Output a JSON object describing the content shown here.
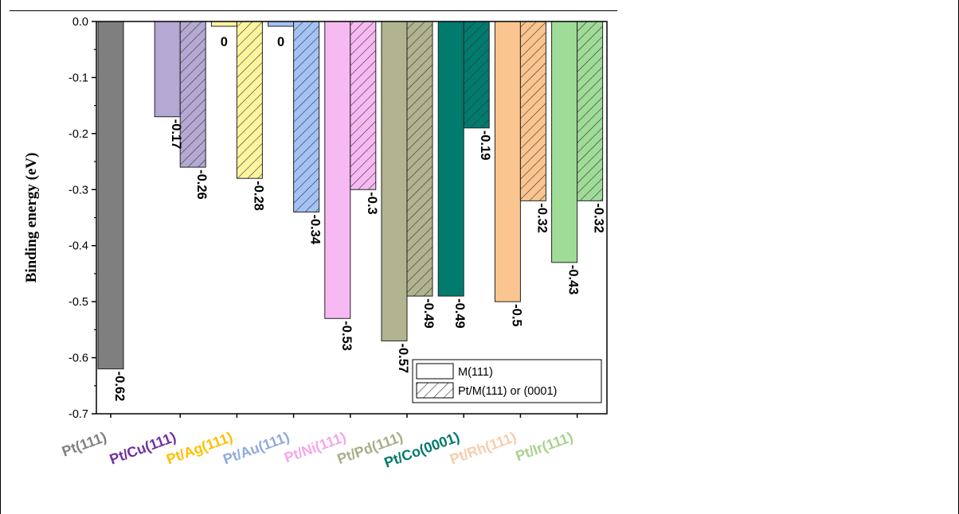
{
  "chart_data": {
    "type": "bar",
    "ylabel": "Binding energy (eV)",
    "xlabel": "",
    "ylim": [
      -0.7,
      0.0
    ],
    "yticks": [
      0.0,
      -0.1,
      -0.2,
      -0.3,
      -0.4,
      -0.5,
      -0.6,
      -0.7
    ],
    "ytick_labels": [
      "0.0",
      "-0.1",
      "-0.2",
      "-0.3",
      "-0.4",
      "-0.5",
      "-0.6",
      "-0.7"
    ],
    "grid": false,
    "legend_position": "bottom-right",
    "groups": [
      {
        "label": "Pt(111)",
        "color": "#7f7f7f",
        "label_color": "#808080",
        "bars": [
          {
            "series": "M(111)",
            "value": -0.62,
            "text": "-0.62"
          }
        ]
      },
      {
        "label": "Pt/Cu(111)",
        "color": "#b5a8d2",
        "label_color": "#7030a0",
        "bars": [
          {
            "series": "M(111)",
            "value": -0.17,
            "text": "-0.17"
          },
          {
            "series": "Pt/M(111) or (0001)",
            "value": -0.26,
            "text": "-0.26"
          }
        ]
      },
      {
        "label": "Pt/Ag(111)",
        "color": "#fff59d",
        "label_color": "#ffc000",
        "bars": [
          {
            "series": "M(111)",
            "value": 0.0,
            "text": "0"
          },
          {
            "series": "Pt/M(111) or (0001)",
            "value": -0.28,
            "text": "-0.28"
          }
        ]
      },
      {
        "label": "Pt/Au(111)",
        "color": "#a4c2f4",
        "label_color": "#8faadc",
        "bars": [
          {
            "series": "M(111)",
            "value": 0.0,
            "text": "0"
          },
          {
            "series": "Pt/M(111) or (0001)",
            "value": -0.34,
            "text": "-0.34"
          }
        ]
      },
      {
        "label": "Pt/Ni(111)",
        "color": "#f7b9f1",
        "label_color": "#f4a6ec",
        "bars": [
          {
            "series": "M(111)",
            "value": -0.53,
            "text": "-0.53"
          },
          {
            "series": "Pt/M(111) or (0001)",
            "value": -0.3,
            "text": "-0.3"
          }
        ]
      },
      {
        "label": "Pt/Pd(111)",
        "color": "#b1b48e",
        "label_color": "#a9ad86",
        "bars": [
          {
            "series": "M(111)",
            "value": -0.57,
            "text": "-0.57"
          },
          {
            "series": "Pt/M(111) or (0001)",
            "value": -0.49,
            "text": "-0.49"
          }
        ]
      },
      {
        "label": "Pt/Co(0001)",
        "color": "#007b6e",
        "label_color": "#00796b",
        "bars": [
          {
            "series": "M(111)",
            "value": -0.49,
            "text": "-0.49"
          },
          {
            "series": "Pt/M(111) or (0001)",
            "value": -0.19,
            "text": "-0.19"
          }
        ]
      },
      {
        "label": "Pt/Rh(111)",
        "color": "#fbc58f",
        "label_color": "#f8cbad",
        "bars": [
          {
            "series": "M(111)",
            "value": -0.5,
            "text": "-0.5"
          },
          {
            "series": "Pt/M(111) or (0001)",
            "value": -0.32,
            "text": "-0.32"
          }
        ]
      },
      {
        "label": "Pt/Ir(111)",
        "color": "#9fdc98",
        "label_color": "#a9d18e",
        "bars": [
          {
            "series": "M(111)",
            "value": -0.43,
            "text": "-0.43"
          },
          {
            "series": "Pt/M(111) or (0001)",
            "value": -0.32,
            "text": "-0.32"
          }
        ]
      }
    ],
    "legend": [
      {
        "label": "M(111)",
        "pattern": "solid"
      },
      {
        "label": "Pt/M(111) or (0001)",
        "pattern": "hatched"
      }
    ]
  }
}
